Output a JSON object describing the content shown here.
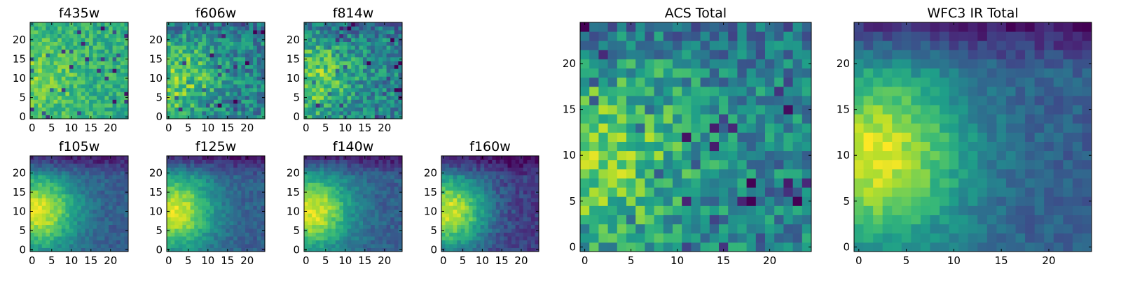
{
  "figure": {
    "description_note": "Grid of viridis heatmaps, 25x25 pixel cutouts per HST filter"
  },
  "chart_data": [
    {
      "type": "heatmap",
      "title": "f435w",
      "xticks": [
        0,
        5,
        10,
        15,
        20
      ],
      "yticks": [
        0,
        5,
        10,
        15,
        20
      ],
      "xlim": [
        0,
        25
      ],
      "ylim": [
        0,
        25
      ],
      "grid_size": 25,
      "texture": "noisy-bright"
    },
    {
      "type": "heatmap",
      "title": "f606w",
      "xticks": [
        0,
        5,
        10,
        15,
        20
      ],
      "yticks": [
        0,
        5,
        10,
        15,
        20
      ],
      "xlim": [
        0,
        25
      ],
      "ylim": [
        0,
        25
      ],
      "grid_size": 25,
      "texture": "noisy-mid"
    },
    {
      "type": "heatmap",
      "title": "f814w",
      "xticks": [
        0,
        5,
        10,
        15,
        20
      ],
      "yticks": [
        0,
        5,
        10,
        15,
        20
      ],
      "xlim": [
        0,
        25
      ],
      "ylim": [
        0,
        25
      ],
      "grid_size": 25,
      "texture": "noisy-mid"
    },
    {
      "type": "heatmap",
      "title": "f105w",
      "xticks": [
        0,
        5,
        10,
        15,
        20
      ],
      "yticks": [
        0,
        5,
        10,
        15,
        20
      ],
      "xlim": [
        0,
        25
      ],
      "ylim": [
        0,
        25
      ],
      "grid_size": 25,
      "texture": "smooth-blob"
    },
    {
      "type": "heatmap",
      "title": "f125w",
      "xticks": [
        0,
        5,
        10,
        15,
        20
      ],
      "yticks": [
        0,
        5,
        10,
        15,
        20
      ],
      "xlim": [
        0,
        25
      ],
      "ylim": [
        0,
        25
      ],
      "grid_size": 25,
      "texture": "smooth-blob"
    },
    {
      "type": "heatmap",
      "title": "f140w",
      "xticks": [
        0,
        5,
        10,
        15,
        20
      ],
      "yticks": [
        0,
        5,
        10,
        15,
        20
      ],
      "xlim": [
        0,
        25
      ],
      "ylim": [
        0,
        25
      ],
      "grid_size": 25,
      "texture": "smooth-blob"
    },
    {
      "type": "heatmap",
      "title": "f160w",
      "xticks": [
        0,
        5,
        10,
        15,
        20
      ],
      "yticks": [
        0,
        5,
        10,
        15,
        20
      ],
      "xlim": [
        0,
        25
      ],
      "ylim": [
        0,
        25
      ],
      "grid_size": 25,
      "texture": "smooth-dark"
    },
    {
      "type": "heatmap",
      "title": "ACS Total",
      "xticks": [
        0,
        5,
        10,
        15,
        20
      ],
      "yticks": [
        0,
        5,
        10,
        15,
        20
      ],
      "xlim": [
        0,
        25
      ],
      "ylim": [
        0,
        25
      ],
      "grid_size": 25,
      "texture": "noisy-mid"
    },
    {
      "type": "heatmap",
      "title": "WFC3 IR Total",
      "xticks": [
        0,
        5,
        10,
        15,
        20
      ],
      "yticks": [
        0,
        5,
        10,
        15,
        20
      ],
      "xlim": [
        0,
        25
      ],
      "ylim": [
        0,
        25
      ],
      "grid_size": 25,
      "texture": "smooth-blob"
    }
  ],
  "colormap": {
    "name": "viridis",
    "stops": [
      "#440154",
      "#482878",
      "#3e4989",
      "#31688e",
      "#26828e",
      "#1f9e89",
      "#35b779",
      "#6ece58",
      "#b5de2b",
      "#fde725"
    ]
  }
}
